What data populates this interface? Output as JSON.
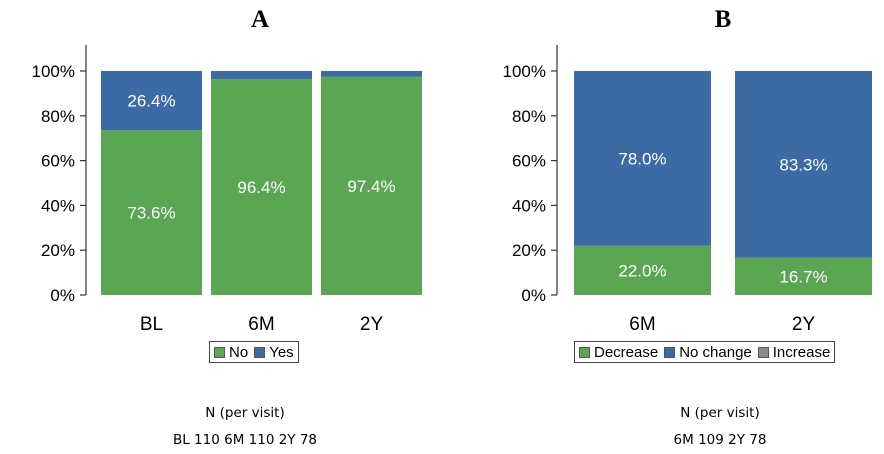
{
  "colors": {
    "green": "#5aa653",
    "blue": "#3b6aa5",
    "gray": "#8c8c8c"
  },
  "panels": {
    "a": {
      "title": "A",
      "note_line1": "N  (per visit)",
      "note_line2": "BL 110   6M 110   2Y 78"
    },
    "b": {
      "title": "B",
      "note_line1": "N  (per visit)",
      "note_line2": "6M 109   2Y 78"
    }
  },
  "chart_data": [
    {
      "type": "bar",
      "stacked": true,
      "title": "A",
      "categories": [
        "BL",
        "6M",
        "2Y"
      ],
      "series": [
        {
          "name": "No",
          "color": "#5aa653",
          "values": [
            73.6,
            96.4,
            97.4
          ],
          "labels": [
            "73.6%",
            "96.4%",
            "97.4%"
          ]
        },
        {
          "name": "Yes",
          "color": "#3b6aa5",
          "values": [
            26.4,
            3.6,
            2.6
          ],
          "labels": [
            "26.4%",
            "",
            ""
          ]
        }
      ],
      "yticks": [
        "0%",
        "20%",
        "40%",
        "60%",
        "80%",
        "100%"
      ],
      "ylim": [
        0,
        100
      ],
      "legend": "bottom"
    },
    {
      "type": "bar",
      "stacked": true,
      "title": "B",
      "categories": [
        "6M",
        "2Y"
      ],
      "series": [
        {
          "name": "Decrease",
          "color": "#5aa653",
          "values": [
            22.0,
            16.7
          ],
          "labels": [
            "22.0%",
            "16.7%"
          ]
        },
        {
          "name": "No change",
          "color": "#3b6aa5",
          "values": [
            78.0,
            83.3
          ],
          "labels": [
            "78.0%",
            "83.3%"
          ]
        },
        {
          "name": "Increase",
          "color": "#8c8c8c",
          "values": [
            0,
            0
          ],
          "labels": [
            "",
            ""
          ]
        }
      ],
      "yticks": [
        "0%",
        "20%",
        "40%",
        "60%",
        "80%",
        "100%"
      ],
      "ylim": [
        0,
        100
      ],
      "legend": "bottom"
    }
  ]
}
